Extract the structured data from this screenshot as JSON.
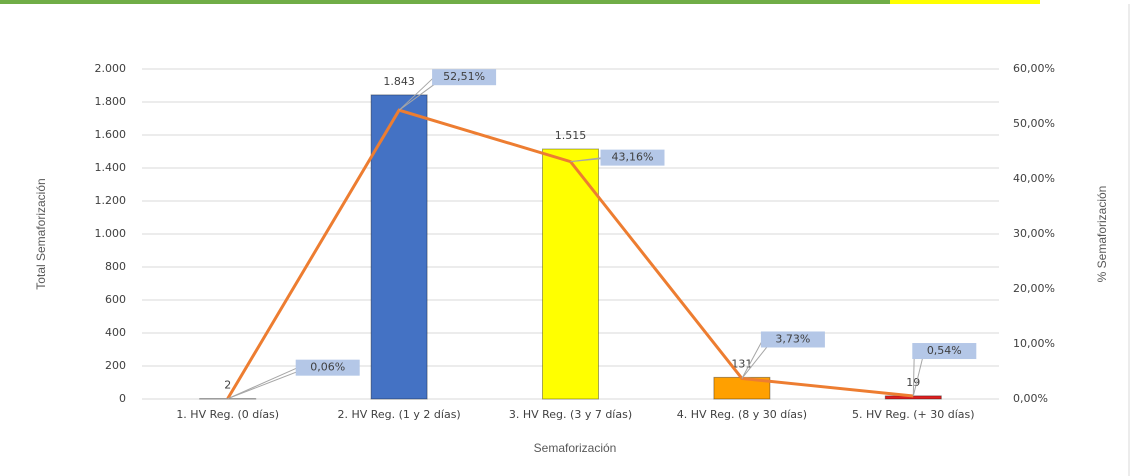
{
  "chart_data": {
    "type": "bar_line",
    "x_label": "Semaforización",
    "y_label": "Total Semaforización",
    "y2_label": "% Semaforización",
    "categories": [
      "1. HV Reg. (0 días)",
      "2. HV Reg. (1 y 2 días)",
      "3. HV Reg. (3 y 7 días)",
      "4. HV Reg. (8 y 30 días)",
      "5. HV Reg. (+ 30 días)"
    ],
    "series": [
      {
        "name": "Total Semaforización",
        "type": "bar",
        "colors": [
          "#a5a5a5",
          "#4472c4",
          "#ffff00",
          "#ffa000",
          "#e02020"
        ],
        "values": [
          2,
          1843,
          1515,
          131,
          19
        ],
        "value_labels": [
          "2",
          "1.843",
          "1.515",
          "131",
          "19"
        ]
      },
      {
        "name": "% Semaforización",
        "type": "line",
        "axis": "y2",
        "color": "#ed7d31",
        "values": [
          0.06,
          52.51,
          43.16,
          3.73,
          0.54
        ],
        "value_labels": [
          "0,06%",
          "52,51%",
          "43,16%",
          "3,73%",
          "0,54%"
        ]
      }
    ],
    "ylim": [
      0,
      2000
    ],
    "yticks": [
      0,
      200,
      400,
      600,
      800,
      {
        "value": 1000,
        "label": "1.000"
      },
      {
        "value": 1200,
        "label": "1.200"
      },
      {
        "value": 1400,
        "label": "1.400"
      },
      {
        "value": 1600,
        "label": "1.600"
      },
      {
        "value": 1800,
        "label": "1.800"
      },
      {
        "value": 2000,
        "label": "2.000"
      }
    ],
    "y2lim": [
      0,
      60
    ],
    "y2ticks": [
      {
        "value": 0,
        "label": "0,00%"
      },
      {
        "value": 10,
        "label": "10,00%"
      },
      {
        "value": 20,
        "label": "20,00%"
      },
      {
        "value": 30,
        "label": "30,00%"
      },
      {
        "value": 40,
        "label": "40,00%"
      },
      {
        "value": 50,
        "label": "50,00%"
      },
      {
        "value": 60,
        "label": "60,00%"
      }
    ],
    "grid": true
  }
}
